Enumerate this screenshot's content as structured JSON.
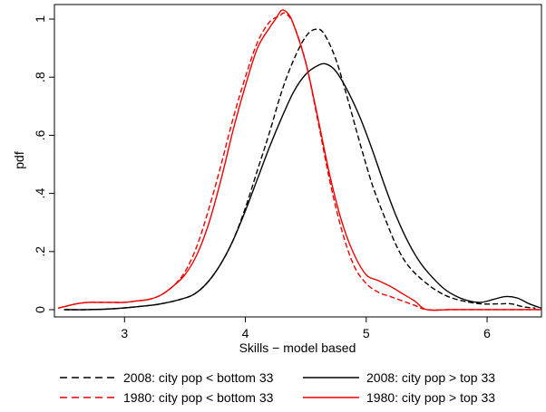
{
  "chart_data": {
    "type": "line",
    "xlabel": "Skills − model based",
    "ylabel": "pdf",
    "xlim": [
      2.42,
      6.45
    ],
    "ylim": [
      -0.025,
      1.05
    ],
    "x_ticks": [
      3,
      4,
      5,
      6
    ],
    "x_tick_labels": [
      "3",
      "4",
      "5",
      "6"
    ],
    "y_ticks": [
      0,
      0.2,
      0.4,
      0.6,
      0.8,
      1
    ],
    "y_tick_labels": [
      "0",
      ".2",
      ".4",
      ".6",
      ".8",
      "1"
    ],
    "grid": false,
    "legend_position": "bottom",
    "series": [
      {
        "name": "2008: city pop < bottom 33",
        "color": "#000000",
        "dash": "dashed",
        "points": [
          [
            2.5,
            0.0
          ],
          [
            2.7,
            0.0
          ],
          [
            2.9,
            0.003
          ],
          [
            3.1,
            0.01
          ],
          [
            3.3,
            0.02
          ],
          [
            3.5,
            0.04
          ],
          [
            3.6,
            0.06
          ],
          [
            3.7,
            0.1
          ],
          [
            3.8,
            0.16
          ],
          [
            3.9,
            0.24
          ],
          [
            4.0,
            0.35
          ],
          [
            4.1,
            0.48
          ],
          [
            4.2,
            0.61
          ],
          [
            4.3,
            0.75
          ],
          [
            4.4,
            0.86
          ],
          [
            4.5,
            0.94
          ],
          [
            4.58,
            0.965
          ],
          [
            4.65,
            0.95
          ],
          [
            4.75,
            0.86
          ],
          [
            4.85,
            0.72
          ],
          [
            4.95,
            0.57
          ],
          [
            5.05,
            0.43
          ],
          [
            5.15,
            0.32
          ],
          [
            5.25,
            0.22
          ],
          [
            5.35,
            0.15
          ],
          [
            5.5,
            0.09
          ],
          [
            5.65,
            0.05
          ],
          [
            5.8,
            0.03
          ],
          [
            5.95,
            0.02
          ],
          [
            6.1,
            0.02
          ],
          [
            6.2,
            0.02
          ],
          [
            6.3,
            0.01
          ],
          [
            6.4,
            0.005
          ]
        ]
      },
      {
        "name": "2008: city pop > top 33",
        "color": "#000000",
        "dash": "solid",
        "points": [
          [
            2.5,
            0.0
          ],
          [
            2.7,
            0.0
          ],
          [
            2.9,
            0.003
          ],
          [
            3.1,
            0.01
          ],
          [
            3.3,
            0.02
          ],
          [
            3.5,
            0.04
          ],
          [
            3.6,
            0.06
          ],
          [
            3.7,
            0.1
          ],
          [
            3.8,
            0.16
          ],
          [
            3.9,
            0.24
          ],
          [
            4.0,
            0.34
          ],
          [
            4.1,
            0.45
          ],
          [
            4.2,
            0.56
          ],
          [
            4.3,
            0.66
          ],
          [
            4.4,
            0.75
          ],
          [
            4.5,
            0.81
          ],
          [
            4.6,
            0.84
          ],
          [
            4.67,
            0.845
          ],
          [
            4.75,
            0.82
          ],
          [
            4.85,
            0.75
          ],
          [
            4.95,
            0.66
          ],
          [
            5.05,
            0.55
          ],
          [
            5.15,
            0.43
          ],
          [
            5.25,
            0.32
          ],
          [
            5.35,
            0.23
          ],
          [
            5.45,
            0.16
          ],
          [
            5.55,
            0.11
          ],
          [
            5.65,
            0.07
          ],
          [
            5.75,
            0.045
          ],
          [
            5.85,
            0.03
          ],
          [
            5.95,
            0.025
          ],
          [
            6.05,
            0.035
          ],
          [
            6.15,
            0.045
          ],
          [
            6.25,
            0.04
          ],
          [
            6.35,
            0.02
          ],
          [
            6.45,
            0.005
          ]
        ]
      },
      {
        "name": "1980: city pop < bottom 33",
        "color": "#ee0000",
        "dash": "dashed",
        "points": [
          [
            2.45,
            0.005
          ],
          [
            2.6,
            0.02
          ],
          [
            2.7,
            0.025
          ],
          [
            2.8,
            0.025
          ],
          [
            2.9,
            0.025
          ],
          [
            3.0,
            0.025
          ],
          [
            3.1,
            0.03
          ],
          [
            3.2,
            0.035
          ],
          [
            3.3,
            0.05
          ],
          [
            3.4,
            0.08
          ],
          [
            3.5,
            0.13
          ],
          [
            3.6,
            0.22
          ],
          [
            3.7,
            0.35
          ],
          [
            3.8,
            0.5
          ],
          [
            3.9,
            0.66
          ],
          [
            4.0,
            0.8
          ],
          [
            4.1,
            0.92
          ],
          [
            4.2,
            0.99
          ],
          [
            4.28,
            1.01
          ],
          [
            4.33,
            1.02
          ],
          [
            4.4,
            0.98
          ],
          [
            4.5,
            0.85
          ],
          [
            4.6,
            0.65
          ],
          [
            4.7,
            0.44
          ],
          [
            4.8,
            0.27
          ],
          [
            4.9,
            0.15
          ],
          [
            5.0,
            0.09
          ],
          [
            5.1,
            0.06
          ],
          [
            5.2,
            0.045
          ],
          [
            5.3,
            0.03
          ],
          [
            5.4,
            0.015
          ],
          [
            5.5,
            0.0
          ],
          [
            5.7,
            0.0
          ],
          [
            5.9,
            0.0
          ],
          [
            6.1,
            0.0
          ],
          [
            6.3,
            0.0
          ],
          [
            6.45,
            0.0
          ]
        ]
      },
      {
        "name": "1980: city pop > top 33",
        "color": "#ee0000",
        "dash": "solid",
        "points": [
          [
            2.45,
            0.005
          ],
          [
            2.6,
            0.02
          ],
          [
            2.7,
            0.025
          ],
          [
            2.8,
            0.025
          ],
          [
            2.9,
            0.025
          ],
          [
            3.0,
            0.025
          ],
          [
            3.1,
            0.03
          ],
          [
            3.2,
            0.035
          ],
          [
            3.3,
            0.05
          ],
          [
            3.4,
            0.08
          ],
          [
            3.5,
            0.12
          ],
          [
            3.6,
            0.19
          ],
          [
            3.7,
            0.3
          ],
          [
            3.8,
            0.45
          ],
          [
            3.9,
            0.62
          ],
          [
            4.0,
            0.77
          ],
          [
            4.1,
            0.9
          ],
          [
            4.2,
            0.97
          ],
          [
            4.25,
            1.0
          ],
          [
            4.3,
            1.03
          ],
          [
            4.35,
            1.02
          ],
          [
            4.4,
            0.98
          ],
          [
            4.5,
            0.85
          ],
          [
            4.6,
            0.66
          ],
          [
            4.7,
            0.46
          ],
          [
            4.8,
            0.3
          ],
          [
            4.9,
            0.19
          ],
          [
            5.0,
            0.12
          ],
          [
            5.1,
            0.1
          ],
          [
            5.2,
            0.08
          ],
          [
            5.3,
            0.055
          ],
          [
            5.4,
            0.03
          ],
          [
            5.5,
            0.0
          ],
          [
            5.7,
            0.0
          ],
          [
            5.9,
            0.0
          ],
          [
            6.1,
            0.0
          ],
          [
            6.3,
            0.0
          ],
          [
            6.45,
            0.0
          ]
        ]
      }
    ]
  }
}
